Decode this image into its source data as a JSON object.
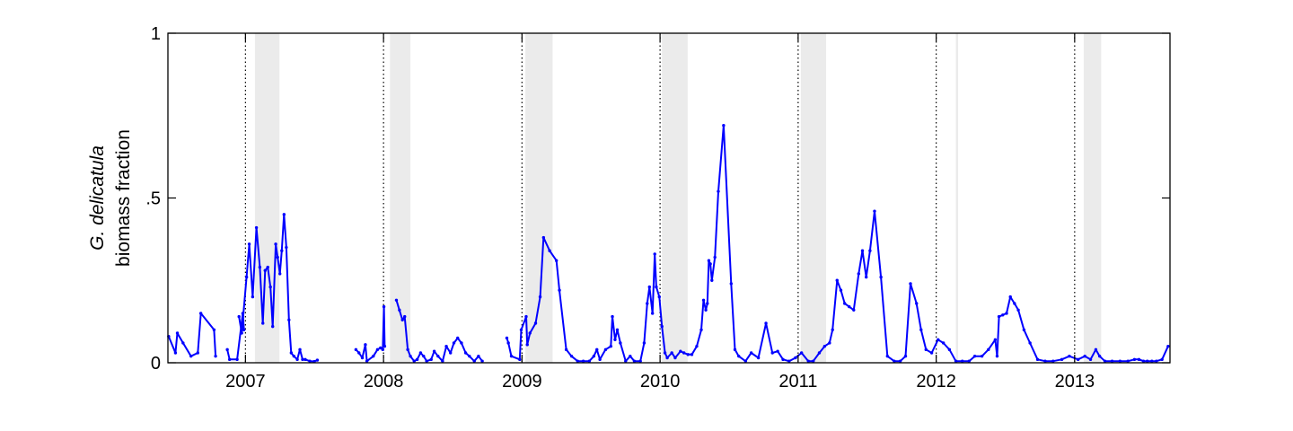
{
  "chart_data": {
    "type": "line",
    "ylabel_italic": "G. delicatula",
    "ylabel": "biomass fraction",
    "xlabel": "",
    "x_range": [
      "2006-06-10",
      "2013-09-10"
    ],
    "ylim": [
      0,
      1
    ],
    "y_ticks": [
      {
        "value": 0,
        "label": "0"
      },
      {
        "value": 0.5,
        "label": ".5"
      },
      {
        "value": 1,
        "label": "1"
      }
    ],
    "x_ticks": [
      {
        "value": "2007-01-01",
        "label": "2007"
      },
      {
        "value": "2008-01-01",
        "label": "2008"
      },
      {
        "value": "2009-01-01",
        "label": "2009"
      },
      {
        "value": "2010-01-01",
        "label": "2010"
      },
      {
        "value": "2011-01-01",
        "label": "2011"
      },
      {
        "value": "2012-01-01",
        "label": "2012"
      },
      {
        "value": "2013-01-01",
        "label": "2013"
      }
    ],
    "year_start_lines": [
      "2007-01-01",
      "2008-01-01",
      "2009-01-01",
      "2010-01-01",
      "2011-01-01",
      "2012-01-01",
      "2013-01-01"
    ],
    "shaded_periods": [
      [
        "2007-01-26",
        "2007-04-01"
      ],
      [
        "2008-01-18",
        "2008-03-12"
      ],
      [
        "2009-01-10",
        "2009-03-23"
      ],
      [
        "2010-01-06",
        "2010-03-15"
      ],
      [
        "2011-01-08",
        "2011-03-16"
      ],
      [
        "2012-02-22",
        "2012-02-28"
      ],
      [
        "2013-01-25",
        "2013-03-12"
      ]
    ],
    "colors": {
      "series": "#0000ff",
      "shade": "#ebebeb",
      "year_line": "#000000"
    },
    "grid": false,
    "legend": "none",
    "series": [
      {
        "segments": [
          [
            [
              "2006-06-12",
              0.08
            ],
            [
              "2006-06-30",
              0.03
            ],
            [
              "2006-07-05",
              0.09
            ],
            [
              "2006-07-20",
              0.06
            ],
            [
              "2006-08-10",
              0.02
            ],
            [
              "2006-08-28",
              0.03
            ],
            [
              "2006-09-05",
              0.15
            ],
            [
              "2006-10-10",
              0.1
            ],
            [
              "2006-10-14",
              0.02
            ]
          ],
          [
            [
              "2006-11-14",
              0.04
            ],
            [
              "2006-11-20",
              0.01
            ],
            [
              "2006-12-10",
              0.01
            ],
            [
              "2006-12-25",
              0.15
            ],
            [
              "2006-12-28",
              0.1
            ]
          ],
          [
            [
              "2006-12-15",
              0.14
            ],
            [
              "2006-12-22",
              0.09
            ],
            [
              "2007-01-04",
              0.26
            ],
            [
              "2007-01-11",
              0.36
            ],
            [
              "2007-01-20",
              0.2
            ],
            [
              "2007-01-30",
              0.41
            ],
            [
              "2007-02-08",
              0.29
            ],
            [
              "2007-02-16",
              0.12
            ],
            [
              "2007-02-22",
              0.28
            ],
            [
              "2007-03-01",
              0.29
            ],
            [
              "2007-03-08",
              0.23
            ],
            [
              "2007-03-14",
              0.11
            ],
            [
              "2007-03-22",
              0.36
            ],
            [
              "2007-03-27",
              0.32
            ],
            [
              "2007-04-02",
              0.27
            ],
            [
              "2007-04-07",
              0.34
            ],
            [
              "2007-04-13",
              0.45
            ],
            [
              "2007-04-19",
              0.35
            ],
            [
              "2007-04-26",
              0.13
            ],
            [
              "2007-05-02",
              0.03
            ],
            [
              "2007-05-09",
              0.02
            ],
            [
              "2007-05-18",
              0.01
            ],
            [
              "2007-05-25",
              0.04
            ],
            [
              "2007-06-01",
              0.01
            ]
          ],
          [
            [
              "2007-06-08",
              0.01
            ],
            [
              "2007-06-20",
              0.005
            ],
            [
              "2007-07-02",
              0.004
            ],
            [
              "2007-07-10",
              0.008
            ]
          ],
          [
            [
              "2007-10-20",
              0.04
            ],
            [
              "2007-10-28",
              0.03
            ],
            [
              "2007-11-06",
              0.015
            ],
            [
              "2007-11-14",
              0.055
            ],
            [
              "2007-11-18",
              0.005
            ],
            [
              "2007-12-05",
              0.02
            ],
            [
              "2007-12-16",
              0.04
            ],
            [
              "2007-12-24",
              0.045
            ],
            [
              "2007-12-30",
              0.04
            ],
            [
              "2008-01-02",
              0.17
            ],
            [
              "2008-01-04",
              0.05
            ]
          ],
          [
            [
              "2008-02-04",
              0.19
            ],
            [
              "2008-02-12",
              0.16
            ],
            [
              "2008-02-20",
              0.13
            ],
            [
              "2008-02-26",
              0.14
            ],
            [
              "2008-03-05",
              0.04
            ],
            [
              "2008-03-12",
              0.02
            ],
            [
              "2008-03-22",
              0.005
            ],
            [
              "2008-03-30",
              0.01
            ],
            [
              "2008-04-08",
              0.03
            ],
            [
              "2008-04-16",
              0.02
            ],
            [
              "2008-04-24",
              0.005
            ],
            [
              "2008-05-06",
              0.01
            ],
            [
              "2008-05-14",
              0.035
            ],
            [
              "2008-05-24",
              0.02
            ],
            [
              "2008-06-05",
              0.005
            ],
            [
              "2008-06-15",
              0.05
            ],
            [
              "2008-06-26",
              0.03
            ],
            [
              "2008-07-05",
              0.06
            ],
            [
              "2008-07-15",
              0.075
            ],
            [
              "2008-07-25",
              0.06
            ],
            [
              "2008-08-05",
              0.03
            ],
            [
              "2008-08-15",
              0.02
            ],
            [
              "2008-08-28",
              0.005
            ],
            [
              "2008-09-08",
              0.02
            ],
            [
              "2008-09-18",
              0.005
            ]
          ],
          [
            [
              "2008-11-22",
              0.075
            ],
            [
              "2008-11-26",
              0.06
            ],
            [
              "2008-12-04",
              0.02
            ],
            [
              "2008-12-26",
              0.01
            ],
            [
              "2008-12-30",
              0.1
            ],
            [
              "2009-01-12",
              0.14
            ],
            [
              "2009-01-15",
              0.055
            ],
            [
              "2009-01-22",
              0.09
            ],
            [
              "2009-02-06",
              0.12
            ],
            [
              "2009-02-18",
              0.2
            ],
            [
              "2009-02-27",
              0.38
            ],
            [
              "2009-03-15",
              0.34
            ],
            [
              "2009-04-02",
              0.31
            ],
            [
              "2009-04-10",
              0.22
            ],
            [
              "2009-04-28",
              0.04
            ],
            [
              "2009-05-12",
              0.02
            ],
            [
              "2009-05-28",
              0.005
            ],
            [
              "2009-06-12",
              0.005
            ],
            [
              "2009-06-28",
              0.005
            ],
            [
              "2009-07-10",
              0.02
            ],
            [
              "2009-07-18",
              0.04
            ],
            [
              "2009-07-26",
              0.01
            ],
            [
              "2009-08-10",
              0.04
            ],
            [
              "2009-08-24",
              0.05
            ],
            [
              "2009-08-28",
              0.14
            ],
            [
              "2009-09-04",
              0.07
            ],
            [
              "2009-09-10",
              0.1
            ],
            [
              "2009-09-18",
              0.06
            ],
            [
              "2009-10-02",
              0.005
            ],
            [
              "2009-10-14",
              0.02
            ],
            [
              "2009-10-25",
              0.005
            ],
            [
              "2009-11-10",
              0.005
            ],
            [
              "2009-11-20",
              0.06
            ],
            [
              "2009-11-28",
              0.18
            ],
            [
              "2009-12-04",
              0.23
            ],
            [
              "2009-12-12",
              0.15
            ],
            [
              "2009-12-18",
              0.33
            ],
            [
              "2009-12-22",
              0.23
            ],
            [
              "2009-12-30",
              0.2
            ],
            [
              "2010-01-06",
              0.11
            ],
            [
              "2010-01-14",
              0.03
            ],
            [
              "2010-01-20",
              0.015
            ],
            [
              "2010-02-01",
              0.03
            ],
            [
              "2010-02-10",
              0.015
            ],
            [
              "2010-02-24",
              0.035
            ],
            [
              "2010-03-05",
              0.03
            ],
            [
              "2010-03-16",
              0.025
            ],
            [
              "2010-03-26",
              0.025
            ],
            [
              "2010-04-08",
              0.05
            ],
            [
              "2010-04-20",
              0.1
            ],
            [
              "2010-04-26",
              0.19
            ],
            [
              "2010-05-02",
              0.16
            ],
            [
              "2010-05-06",
              0.18
            ],
            [
              "2010-05-10",
              0.31
            ],
            [
              "2010-05-14",
              0.3
            ],
            [
              "2010-05-18",
              0.25
            ],
            [
              "2010-05-26",
              0.32
            ],
            [
              "2010-06-04",
              0.52
            ],
            [
              "2010-06-18",
              0.72
            ],
            [
              "2010-07-08",
              0.24
            ],
            [
              "2010-07-18",
              0.04
            ],
            [
              "2010-07-28",
              0.02
            ],
            [
              "2010-08-15",
              0.005
            ],
            [
              "2010-08-30",
              0.03
            ],
            [
              "2010-09-18",
              0.015
            ],
            [
              "2010-10-08",
              0.12
            ],
            [
              "2010-10-25",
              0.03
            ],
            [
              "2010-11-08",
              0.035
            ],
            [
              "2010-11-22",
              0.01
            ],
            [
              "2010-12-08",
              0.005
            ],
            [
              "2010-12-25",
              0.015
            ],
            [
              "2011-01-10",
              0.03
            ],
            [
              "2011-01-28",
              0.005
            ],
            [
              "2011-02-10",
              0.005
            ],
            [
              "2011-02-26",
              0.03
            ],
            [
              "2011-03-12",
              0.05
            ],
            [
              "2011-03-25",
              0.06
            ],
            [
              "2011-04-02",
              0.1
            ],
            [
              "2011-04-14",
              0.25
            ],
            [
              "2011-04-24",
              0.22
            ],
            [
              "2011-05-04",
              0.18
            ],
            [
              "2011-05-16",
              0.17
            ],
            [
              "2011-05-28",
              0.16
            ],
            [
              "2011-06-10",
              0.27
            ],
            [
              "2011-06-20",
              0.34
            ],
            [
              "2011-06-30",
              0.26
            ],
            [
              "2011-07-10",
              0.34
            ],
            [
              "2011-07-22",
              0.46
            ],
            [
              "2011-08-08",
              0.26
            ],
            [
              "2011-08-25",
              0.02
            ],
            [
              "2011-09-12",
              0.005
            ],
            [
              "2011-09-28",
              0.005
            ],
            [
              "2011-10-12",
              0.02
            ],
            [
              "2011-10-25",
              0.24
            ],
            [
              "2011-11-10",
              0.18
            ],
            [
              "2011-11-22",
              0.1
            ],
            [
              "2011-12-05",
              0.04
            ],
            [
              "2011-12-20",
              0.03
            ],
            [
              "2012-01-06",
              0.07
            ],
            [
              "2012-01-20",
              0.06
            ],
            [
              "2012-02-05",
              0.04
            ],
            [
              "2012-02-22",
              0.005
            ],
            [
              "2012-03-10",
              0.005
            ],
            [
              "2012-03-28",
              0.005
            ],
            [
              "2012-04-12",
              0.02
            ],
            [
              "2012-05-01",
              0.02
            ],
            [
              "2012-05-18",
              0.04
            ],
            [
              "2012-06-05",
              0.07
            ],
            [
              "2012-06-10",
              0.02
            ],
            [
              "2012-06-15",
              0.14
            ],
            [
              "2012-06-25",
              0.145
            ],
            [
              "2012-07-05",
              0.15
            ],
            [
              "2012-07-15",
              0.2
            ],
            [
              "2012-07-26",
              0.18
            ],
            [
              "2012-08-05",
              0.16
            ],
            [
              "2012-08-20",
              0.1
            ],
            [
              "2012-09-05",
              0.06
            ],
            [
              "2012-09-25",
              0.01
            ],
            [
              "2012-10-15",
              0.005
            ],
            [
              "2012-11-05",
              0.005
            ],
            [
              "2012-11-28",
              0.01
            ],
            [
              "2012-12-18",
              0.02
            ],
            [
              "2013-01-10",
              0.01
            ],
            [
              "2013-01-28",
              0.02
            ],
            [
              "2013-02-12",
              0.01
            ],
            [
              "2013-02-26",
              0.04
            ],
            [
              "2013-03-08",
              0.02
            ],
            [
              "2013-03-22",
              0.005
            ],
            [
              "2013-04-10",
              0.005
            ],
            [
              "2013-05-01",
              0.005
            ],
            [
              "2013-05-22",
              0.005
            ],
            [
              "2013-06-08",
              0.01
            ],
            [
              "2013-06-20",
              0.01
            ],
            [
              "2013-07-02",
              0.005
            ],
            [
              "2013-07-12",
              0.005
            ],
            [
              "2013-07-24",
              0.005
            ],
            [
              "2013-08-05",
              0.005
            ],
            [
              "2013-08-20",
              0.01
            ],
            [
              "2013-09-05",
              0.05
            ]
          ]
        ]
      }
    ]
  }
}
